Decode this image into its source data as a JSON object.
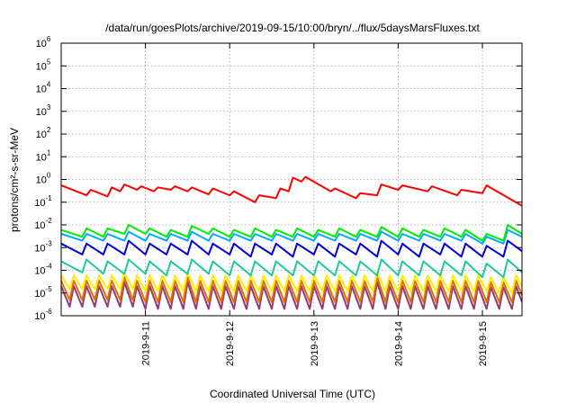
{
  "chart_data": {
    "type": "line",
    "title": "/data/run/goesPlots/archive/2019-09-15/10:00/bryn/../flux/5daysMarsFluxes.txt",
    "xlabel": "Coordinated Universal Time (UTC)",
    "ylabel": "protons/cm²-s-sr-MeV",
    "yscale": "log",
    "ylim": [
      1e-06,
      1000000.0
    ],
    "xlim": [
      0,
      5.47
    ],
    "y_tick_exponents": [
      -6,
      -5,
      -4,
      -3,
      -2,
      -1,
      0,
      1,
      2,
      3,
      4,
      5,
      6
    ],
    "x_ticks": [
      {
        "x": 1,
        "label": "2019-9-11"
      },
      {
        "x": 2,
        "label": "2019-9-12"
      },
      {
        "x": 3,
        "label": "2019-9-13"
      },
      {
        "x": 4,
        "label": "2019-9-14"
      },
      {
        "x": 5,
        "label": "2019-9-15"
      }
    ],
    "grid": true,
    "legend": "none",
    "series": [
      {
        "color": "#ff0000",
        "x": [
          0.0,
          0.3,
          0.35,
          0.55,
          0.6,
          0.7,
          0.75,
          0.9,
          0.95,
          1.1,
          1.15,
          1.3,
          1.35,
          1.5,
          1.55,
          1.75,
          1.8,
          2.0,
          2.05,
          2.3,
          2.35,
          2.55,
          2.6,
          2.7,
          2.75,
          2.85,
          2.9,
          3.2,
          3.25,
          3.5,
          3.55,
          3.75,
          3.8,
          4.0,
          4.05,
          4.35,
          4.4,
          4.7,
          4.75,
          5.0,
          5.05,
          5.47
        ],
        "values": [
          0.55,
          0.2,
          0.35,
          0.18,
          0.45,
          0.3,
          0.6,
          0.35,
          0.5,
          0.3,
          0.45,
          0.35,
          0.5,
          0.3,
          0.45,
          0.22,
          0.4,
          0.2,
          0.3,
          0.1,
          0.2,
          0.15,
          0.4,
          0.3,
          1.2,
          0.8,
          1.3,
          0.3,
          0.4,
          0.15,
          0.25,
          0.2,
          0.6,
          0.35,
          0.55,
          0.3,
          0.5,
          0.2,
          0.35,
          0.25,
          0.55,
          0.07
        ]
      },
      {
        "color": "#00ee00",
        "x": [
          0.0,
          0.25,
          0.3,
          0.5,
          0.55,
          0.75,
          0.8,
          1.0,
          1.05,
          1.25,
          1.3,
          1.5,
          1.55,
          1.75,
          1.8,
          2.0,
          2.05,
          2.25,
          2.3,
          2.5,
          2.55,
          2.75,
          2.8,
          3.0,
          3.05,
          3.25,
          3.3,
          3.5,
          3.55,
          3.75,
          3.8,
          4.0,
          4.05,
          4.25,
          4.3,
          4.5,
          4.55,
          4.75,
          4.8,
          5.0,
          5.05,
          5.25,
          5.3,
          5.47
        ],
        "values": [
          0.006,
          0.003,
          0.007,
          0.003,
          0.007,
          0.004,
          0.01,
          0.004,
          0.007,
          0.003,
          0.006,
          0.003,
          0.009,
          0.004,
          0.007,
          0.003,
          0.006,
          0.003,
          0.007,
          0.003,
          0.006,
          0.003,
          0.007,
          0.003,
          0.006,
          0.003,
          0.007,
          0.003,
          0.006,
          0.003,
          0.008,
          0.003,
          0.007,
          0.003,
          0.006,
          0.003,
          0.007,
          0.003,
          0.006,
          0.002,
          0.004,
          0.002,
          0.01,
          0.004
        ]
      },
      {
        "color": "#00aaff",
        "x": [
          0.0,
          0.25,
          0.3,
          0.5,
          0.55,
          0.75,
          0.8,
          1.0,
          1.05,
          1.25,
          1.3,
          1.5,
          1.55,
          1.75,
          1.8,
          2.0,
          2.05,
          2.25,
          2.3,
          2.5,
          2.55,
          2.75,
          2.8,
          3.0,
          3.05,
          3.25,
          3.3,
          3.5,
          3.55,
          3.75,
          3.8,
          4.0,
          4.05,
          4.25,
          4.3,
          4.5,
          4.55,
          4.75,
          4.8,
          5.0,
          5.05,
          5.25,
          5.3,
          5.47
        ],
        "values": [
          0.004,
          0.002,
          0.004,
          0.002,
          0.004,
          0.002,
          0.005,
          0.002,
          0.004,
          0.002,
          0.004,
          0.002,
          0.005,
          0.002,
          0.004,
          0.002,
          0.004,
          0.002,
          0.004,
          0.002,
          0.004,
          0.002,
          0.004,
          0.002,
          0.004,
          0.002,
          0.004,
          0.002,
          0.004,
          0.002,
          0.005,
          0.002,
          0.004,
          0.002,
          0.004,
          0.002,
          0.004,
          0.002,
          0.004,
          0.0015,
          0.003,
          0.0015,
          0.006,
          0.003
        ]
      },
      {
        "color": "#0000dd",
        "x": [
          0.0,
          0.25,
          0.3,
          0.5,
          0.55,
          0.75,
          0.8,
          1.0,
          1.05,
          1.25,
          1.3,
          1.5,
          1.55,
          1.75,
          1.8,
          2.0,
          2.05,
          2.25,
          2.3,
          2.5,
          2.55,
          2.75,
          2.8,
          3.0,
          3.05,
          3.25,
          3.3,
          3.5,
          3.55,
          3.75,
          3.8,
          4.0,
          4.05,
          4.25,
          4.3,
          4.5,
          4.55,
          4.75,
          4.8,
          5.0,
          5.05,
          5.25,
          5.3,
          5.47
        ],
        "values": [
          0.0015,
          0.0005,
          0.0015,
          0.0005,
          0.0015,
          0.0005,
          0.002,
          0.0005,
          0.0015,
          0.0005,
          0.0015,
          0.0005,
          0.002,
          0.0005,
          0.0015,
          0.0005,
          0.0015,
          0.0004,
          0.0015,
          0.0005,
          0.0015,
          0.0004,
          0.0015,
          0.0005,
          0.0015,
          0.0004,
          0.0015,
          0.0005,
          0.0015,
          0.0004,
          0.002,
          0.0005,
          0.0015,
          0.0004,
          0.0015,
          0.0005,
          0.0015,
          0.0004,
          0.0015,
          0.0004,
          0.0012,
          0.0004,
          0.002,
          0.0007
        ]
      },
      {
        "color": "#20c8a0",
        "x": [
          0.0,
          0.25,
          0.3,
          0.5,
          0.55,
          0.75,
          0.8,
          1.0,
          1.05,
          1.25,
          1.3,
          1.5,
          1.55,
          1.75,
          1.8,
          2.0,
          2.05,
          2.25,
          2.3,
          2.5,
          2.55,
          2.75,
          2.8,
          3.0,
          3.05,
          3.25,
          3.3,
          3.5,
          3.55,
          3.75,
          3.8,
          4.0,
          4.05,
          4.25,
          4.3,
          4.5,
          4.55,
          4.75,
          4.8,
          5.0,
          5.05,
          5.25,
          5.3,
          5.47
        ],
        "values": [
          0.00025,
          8e-05,
          0.0003,
          7e-05,
          0.00025,
          7e-05,
          0.0003,
          7e-05,
          0.00025,
          6e-05,
          0.00025,
          7e-05,
          0.0003,
          7e-05,
          0.00025,
          6e-05,
          0.00025,
          6e-05,
          0.00025,
          6e-05,
          0.00025,
          6e-05,
          0.00025,
          6e-05,
          0.00025,
          6e-05,
          0.00025,
          6e-05,
          0.00025,
          6e-05,
          0.0003,
          6e-05,
          0.00025,
          6e-05,
          0.00025,
          6e-05,
          0.00025,
          6e-05,
          0.00025,
          5e-05,
          0.0002,
          5e-05,
          0.0003,
          8e-05
        ]
      },
      {
        "color": "#ffee00",
        "x": [
          0.0,
          0.1,
          0.15,
          0.25,
          0.3,
          0.4,
          0.45,
          0.55,
          0.6,
          0.7,
          0.75,
          0.85,
          0.9,
          1.0,
          1.05,
          1.15,
          1.2,
          1.3,
          1.35,
          1.45,
          1.5,
          1.6,
          1.65,
          1.75,
          1.8,
          1.9,
          1.95,
          2.05,
          2.1,
          2.2,
          2.25,
          2.35,
          2.4,
          2.5,
          2.55,
          2.65,
          2.7,
          2.8,
          2.85,
          2.95,
          3.0,
          3.1,
          3.15,
          3.25,
          3.3,
          3.4,
          3.45,
          3.55,
          3.6,
          3.7,
          3.75,
          3.85,
          3.9,
          4.0,
          4.05,
          4.15,
          4.2,
          4.3,
          4.35,
          4.45,
          4.5,
          4.6,
          4.65,
          4.75,
          4.8,
          4.9,
          4.95,
          5.05,
          5.1,
          5.2,
          5.25,
          5.35,
          5.4,
          5.47
        ],
        "values": [
          6e-05,
          1.5e-05,
          6e-05,
          1.5e-05,
          6e-05,
          1.5e-05,
          6e-05,
          1.5e-05,
          6e-05,
          1.5e-05,
          8e-05,
          1.5e-05,
          6e-05,
          1.2e-05,
          6e-05,
          1.2e-05,
          6e-05,
          1.2e-05,
          6e-05,
          1.2e-05,
          8e-05,
          1.2e-05,
          6e-05,
          1.2e-05,
          6e-05,
          1.2e-05,
          6e-05,
          1.2e-05,
          6e-05,
          1.2e-05,
          6e-05,
          1.2e-05,
          6e-05,
          1.2e-05,
          6e-05,
          1.2e-05,
          6e-05,
          1.2e-05,
          6e-05,
          1.2e-05,
          6e-05,
          1.2e-05,
          6e-05,
          1.2e-05,
          6e-05,
          1.2e-05,
          6e-05,
          1.2e-05,
          6e-05,
          1.2e-05,
          8e-05,
          1.2e-05,
          6e-05,
          1.2e-05,
          6e-05,
          1.2e-05,
          6e-05,
          1.2e-05,
          6e-05,
          1.2e-05,
          6e-05,
          1.2e-05,
          6e-05,
          1.2e-05,
          6e-05,
          1.2e-05,
          6e-05,
          1.2e-05,
          5e-05,
          1e-05,
          5e-05,
          1e-05,
          6e-05,
          2e-05
        ]
      },
      {
        "color": "#e07000",
        "x": [
          0.0,
          0.1,
          0.15,
          0.25,
          0.3,
          0.4,
          0.45,
          0.55,
          0.6,
          0.7,
          0.75,
          0.85,
          0.9,
          1.0,
          1.05,
          1.15,
          1.2,
          1.3,
          1.35,
          1.45,
          1.5,
          1.6,
          1.65,
          1.75,
          1.8,
          1.9,
          1.95,
          2.05,
          2.1,
          2.2,
          2.25,
          2.35,
          2.4,
          2.5,
          2.55,
          2.65,
          2.7,
          2.8,
          2.85,
          2.95,
          3.0,
          3.1,
          3.15,
          3.25,
          3.3,
          3.4,
          3.45,
          3.55,
          3.6,
          3.7,
          3.75,
          3.85,
          3.9,
          4.0,
          4.05,
          4.15,
          4.2,
          4.3,
          4.35,
          4.45,
          4.5,
          4.6,
          4.65,
          4.75,
          4.8,
          4.9,
          4.95,
          5.05,
          5.1,
          5.2,
          5.25,
          5.35,
          5.4,
          5.47
        ],
        "values": [
          3.5e-05,
          5e-06,
          3.5e-05,
          5e-06,
          3.5e-05,
          5e-06,
          3.5e-05,
          5e-06,
          3.5e-05,
          5e-06,
          5e-05,
          5e-06,
          3.5e-05,
          4e-06,
          3.5e-05,
          4e-06,
          3.5e-05,
          4e-06,
          3.5e-05,
          4e-06,
          5e-05,
          4e-06,
          3.5e-05,
          4e-06,
          3.5e-05,
          4e-06,
          3.5e-05,
          4e-06,
          3.5e-05,
          4e-06,
          3.5e-05,
          4e-06,
          3.5e-05,
          4e-06,
          3.5e-05,
          4e-06,
          3.5e-05,
          4e-06,
          3.5e-05,
          4e-06,
          3.5e-05,
          4e-06,
          3.5e-05,
          4e-06,
          3.5e-05,
          4e-06,
          3.5e-05,
          4e-06,
          3.5e-05,
          4e-06,
          5e-05,
          4e-06,
          3.5e-05,
          4e-06,
          3.5e-05,
          4e-06,
          3.5e-05,
          4e-06,
          3.5e-05,
          4e-06,
          3.5e-05,
          4e-06,
          3.5e-05,
          4e-06,
          3.5e-05,
          4e-06,
          3.5e-05,
          4e-06,
          3e-05,
          4e-06,
          3e-05,
          4e-06,
          3.5e-05,
          8e-06
        ]
      },
      {
        "color": "#903c78",
        "x": [
          0.0,
          0.1,
          0.15,
          0.25,
          0.3,
          0.4,
          0.45,
          0.55,
          0.6,
          0.7,
          0.75,
          0.85,
          0.9,
          1.0,
          1.05,
          1.15,
          1.2,
          1.3,
          1.35,
          1.45,
          1.5,
          1.6,
          1.65,
          1.75,
          1.8,
          1.9,
          1.95,
          2.05,
          2.1,
          2.2,
          2.25,
          2.35,
          2.4,
          2.5,
          2.55,
          2.65,
          2.7,
          2.8,
          2.85,
          2.95,
          3.0,
          3.1,
          3.15,
          3.25,
          3.3,
          3.4,
          3.45,
          3.55,
          3.6,
          3.7,
          3.75,
          3.85,
          3.9,
          4.0,
          4.05,
          4.15,
          4.2,
          4.3,
          4.35,
          4.45,
          4.5,
          4.6,
          4.65,
          4.75,
          4.8,
          4.9,
          4.95,
          5.05,
          5.1,
          5.2,
          5.25,
          5.35,
          5.4,
          5.47
        ],
        "values": [
          2e-05,
          2.5e-06,
          2e-05,
          2.5e-06,
          2e-05,
          2.5e-06,
          2e-05,
          2.5e-06,
          2e-05,
          2.5e-06,
          3e-05,
          2.5e-06,
          2e-05,
          2e-06,
          2e-05,
          2e-06,
          2e-05,
          2e-06,
          2e-05,
          2e-06,
          3e-05,
          2e-06,
          2e-05,
          2e-06,
          2e-05,
          2e-06,
          2e-05,
          2e-06,
          2e-05,
          2e-06,
          2e-05,
          2e-06,
          2e-05,
          2e-06,
          2e-05,
          2e-06,
          2e-05,
          2e-06,
          2e-05,
          2e-06,
          2e-05,
          2e-06,
          2e-05,
          2e-06,
          2e-05,
          2e-06,
          2e-05,
          2e-06,
          2e-05,
          2e-06,
          3e-05,
          2e-06,
          2e-05,
          2e-06,
          2e-05,
          2e-06,
          2e-05,
          2e-06,
          2e-05,
          2e-06,
          2e-05,
          2e-06,
          2e-05,
          2e-06,
          2e-05,
          2e-06,
          2e-05,
          2e-06,
          1.8e-05,
          2e-06,
          1.8e-05,
          2e-06,
          2e-05,
          4e-06
        ]
      }
    ]
  }
}
